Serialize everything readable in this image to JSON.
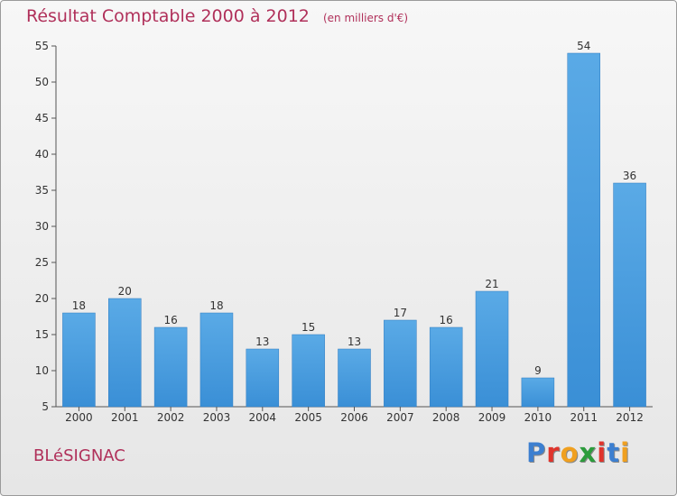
{
  "chart_data": {
    "type": "bar",
    "title": "Résultat Comptable 2000 à 2012",
    "unit_note": "(en milliers d'€)",
    "categories": [
      "2000",
      "2001",
      "2002",
      "2003",
      "2004",
      "2005",
      "2006",
      "2007",
      "2008",
      "2009",
      "2010",
      "2011",
      "2012"
    ],
    "values": [
      18,
      20,
      16,
      18,
      13,
      15,
      13,
      17,
      16,
      21,
      9,
      54,
      36
    ],
    "ylim": [
      5,
      55
    ],
    "yticks": [
      5,
      10,
      15,
      20,
      25,
      30,
      35,
      40,
      45,
      50,
      55
    ],
    "xlabel": "",
    "ylabel": "",
    "grid": false,
    "data_labels": true,
    "bar_color": "#3a8fd6",
    "bar_color_light": "#5aaae6"
  },
  "place_name": "BLéSIGNAC",
  "brand": {
    "letters": [
      "P",
      "r",
      "o",
      "x",
      "i",
      "t",
      "i"
    ],
    "colors": [
      "#3c7fd0",
      "#e0342c",
      "#f0a020",
      "#2c9c3c",
      "#e0342c",
      "#3c7fd0",
      "#f0a020"
    ]
  },
  "colors": {
    "title": "#b0305a",
    "axis": "#555555",
    "text": "#333333"
  }
}
